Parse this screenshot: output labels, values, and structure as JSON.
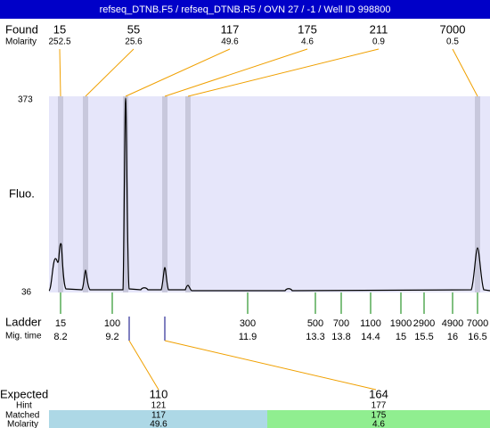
{
  "header": {
    "title": "refseq_DTNB.F5 / refseq_DTNB.R5 / OVN 27 / -1 / Well ID 998800"
  },
  "found": {
    "label": "Found",
    "molarity_label": "Molarity",
    "peaks": [
      {
        "size": "15",
        "molarity": "252.5"
      },
      {
        "size": "55",
        "molarity": "25.6"
      },
      {
        "size": "117",
        "molarity": "49.6"
      },
      {
        "size": "175",
        "molarity": "4.6"
      },
      {
        "size": "211",
        "molarity": "0.9"
      },
      {
        "size": "7000",
        "molarity": "0.5"
      }
    ]
  },
  "plot": {
    "y_label": "Fluo.",
    "y_max": "373",
    "y_min": "36"
  },
  "ladder": {
    "label": "Ladder",
    "time_label": "Mig. time",
    "entries": [
      {
        "size": "15",
        "time": "8.2"
      },
      {
        "size": "100",
        "time": "9.2"
      },
      {
        "size": "300",
        "time": "11.9"
      },
      {
        "size": "500",
        "time": "13.3"
      },
      {
        "size": "700",
        "time": "13.8"
      },
      {
        "size": "1100",
        "time": "14.4"
      },
      {
        "size": "1900",
        "time": "15"
      },
      {
        "size": "2900",
        "time": "15.5"
      },
      {
        "size": "4900",
        "time": "16"
      },
      {
        "size": "7000",
        "time": "16.5"
      }
    ]
  },
  "expected": {
    "label": "Expected",
    "hint_label": "Hint",
    "matched_label": "Matched",
    "molarity_label": "Molarity",
    "items": [
      {
        "size": "110",
        "hint": "121",
        "matched": "117",
        "molarity": "49.6"
      },
      {
        "size": "164",
        "hint": "177",
        "matched": "175",
        "molarity": "4.6"
      }
    ]
  }
}
